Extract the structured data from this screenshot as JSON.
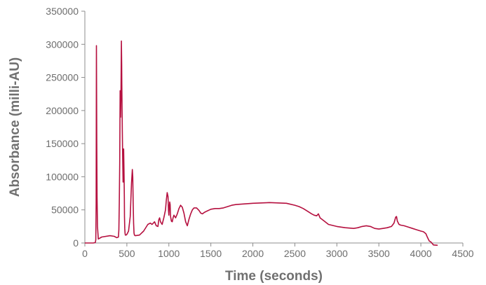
{
  "chart_data": {
    "type": "line",
    "title": "",
    "xlabel": "Time (seconds)",
    "ylabel": "Absorbance (milli-AU)",
    "xlim": [
      0,
      4500
    ],
    "ylim": [
      0,
      350000
    ],
    "x_ticks": [
      "0",
      "500",
      "1000",
      "1500",
      "2000",
      "2500",
      "3000",
      "3500",
      "4000",
      "4500"
    ],
    "y_ticks": [
      "0",
      "50000",
      "100000",
      "150000",
      "200000",
      "250000",
      "300000",
      "350000"
    ],
    "grid": false,
    "legend": "none",
    "colors": {
      "line": "#b5103f",
      "axis": "#8c8c8c"
    },
    "series": [
      {
        "x": [
          0,
          100,
          120,
          125,
          130,
          134,
          138,
          142,
          145,
          150,
          160,
          200,
          300,
          350,
          380,
          400,
          405,
          410,
          415,
          420,
          425,
          430,
          435,
          438,
          440,
          443,
          446,
          450,
          455,
          458,
          462,
          466,
          470,
          472,
          475,
          478,
          482,
          490,
          500,
          520,
          540,
          555,
          565,
          570,
          575,
          580,
          585,
          590,
          600,
          650,
          700,
          750,
          780,
          800,
          830,
          850,
          870,
          880,
          890,
          900,
          920,
          940,
          960,
          970,
          980,
          990,
          995,
          1000,
          1005,
          1010,
          1015,
          1020,
          1030,
          1040,
          1050,
          1060,
          1080,
          1100,
          1120,
          1140,
          1160,
          1180,
          1200,
          1220,
          1240,
          1260,
          1280,
          1300,
          1330,
          1360,
          1380,
          1400,
          1420,
          1450,
          1500,
          1550,
          1600,
          1650,
          1700,
          1750,
          1800,
          1900,
          2000,
          2100,
          2200,
          2300,
          2400,
          2500,
          2550,
          2600,
          2650,
          2700,
          2730,
          2760,
          2780,
          2800,
          2850,
          2900,
          3000,
          3100,
          3200,
          3250,
          3300,
          3350,
          3400,
          3450,
          3500,
          3550,
          3600,
          3650,
          3680,
          3700,
          3710,
          3720,
          3740,
          3760,
          3800,
          3850,
          3900,
          3950,
          4000,
          4030,
          4060,
          4080,
          4100,
          4120,
          4150,
          4200
        ],
        "values": [
          0,
          0,
          500,
          1000,
          5000,
          60000,
          298000,
          150000,
          70000,
          25000,
          6000,
          9000,
          11000,
          10000,
          8000,
          9000,
          20000,
          60000,
          120000,
          230000,
          190000,
          225000,
          305000,
          270000,
          240000,
          200000,
          170000,
          130000,
          92000,
          110000,
          142000,
          110000,
          70000,
          40000,
          22000,
          15000,
          12000,
          12000,
          13000,
          18000,
          40000,
          90000,
          111000,
          100000,
          60000,
          30000,
          15000,
          12000,
          11000,
          12000,
          18000,
          28000,
          30000,
          28000,
          32000,
          26000,
          25000,
          35000,
          38000,
          32000,
          28000,
          38000,
          50000,
          65000,
          76000,
          70000,
          50000,
          42000,
          55000,
          62000,
          58000,
          40000,
          33000,
          32000,
          38000,
          42000,
          38000,
          44000,
          52000,
          57000,
          54000,
          45000,
          32000,
          26000,
          36000,
          44000,
          50000,
          53000,
          53000,
          49000,
          45000,
          44000,
          46000,
          48000,
          51000,
          52000,
          52000,
          53000,
          55000,
          57000,
          58000,
          59000,
          60000,
          60500,
          61000,
          60500,
          60000,
          57000,
          55000,
          52000,
          48000,
          44000,
          42000,
          41000,
          44000,
          38000,
          33000,
          28000,
          25000,
          23000,
          22000,
          23000,
          25000,
          26000,
          25000,
          22000,
          21000,
          22000,
          23000,
          25000,
          30000,
          39000,
          40000,
          33000,
          28000,
          27000,
          26000,
          24000,
          22000,
          20000,
          18000,
          17000,
          14000,
          8000,
          3000,
          1500,
          -3000,
          -3500
        ]
      }
    ]
  }
}
